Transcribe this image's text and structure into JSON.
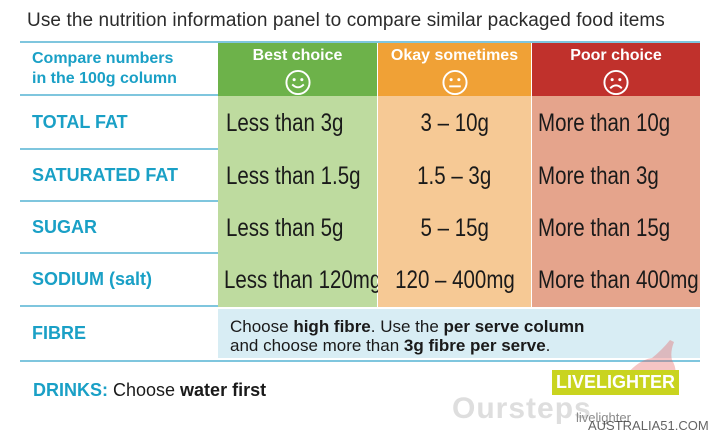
{
  "intro": "Use the nutrition information panel to compare similar packaged food items",
  "header": {
    "compare_line1": "Compare numbers",
    "compare_line2": "in the 100g column",
    "best": "Best choice",
    "okay": "Okay sometimes",
    "poor": "Poor choice"
  },
  "rows": [
    {
      "label": "TOTAL FAT",
      "best": "Less than 3g",
      "okay": "3 – 10g",
      "poor": "More than 10g"
    },
    {
      "label": "SATURATED FAT",
      "best": "Less than 1.5g",
      "okay": "1.5 – 3g",
      "poor": "More than 3g"
    },
    {
      "label": "SUGAR",
      "best": "Less than 5g",
      "okay": "5 – 15g",
      "poor": "More than 15g"
    },
    {
      "label": "SODIUM (salt)",
      "best": "Less than 120mg",
      "okay": "120 – 400mg",
      "poor": "More than 400mg"
    }
  ],
  "fibre": {
    "label": "FIBRE",
    "t1": "Choose ",
    "b1": "high fibre",
    "t2": ". Use the ",
    "b2": "per serve column",
    "t3": "and choose more than ",
    "b3": "3g fibre per serve",
    "t4": "."
  },
  "drinks": {
    "label": "DRINKS:",
    "t1": " Choose ",
    "b1": "water first"
  },
  "logo": {
    "text": "LIVELIGHTER",
    "sub": "livelighter"
  },
  "watermark": {
    "main": "Oursteps",
    "sub": "AUSTRALIA51.COM"
  },
  "colors": {
    "accent_blue": "#1aa0c6",
    "best_head": "#6db24a",
    "okay_head": "#f0a136",
    "poor_head": "#c0312c",
    "best_cell": "#bedb9f",
    "okay_cell": "#f6c995",
    "poor_cell": "#e5a48c",
    "fibre_bg": "#d8edf4"
  },
  "icons": {
    "best": "smiley-face-icon",
    "okay": "neutral-face-icon",
    "poor": "sad-face-icon"
  }
}
